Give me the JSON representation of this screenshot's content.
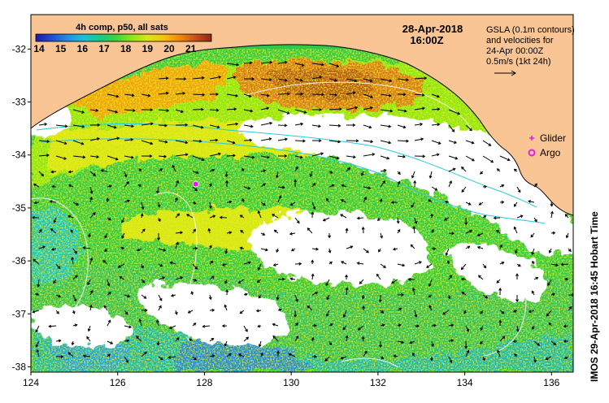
{
  "colors": {
    "land": "#f9c594",
    "no_data": "#ffffff",
    "coastline": "#000000",
    "contour": "#ffffff",
    "glider": "#e01ee0",
    "argo": "#e01ee0",
    "isobath": "#27c9e0"
  },
  "colorbar": {
    "title": "4h comp, p50, all sats",
    "ticks": [
      "14",
      "15",
      "16",
      "17",
      "18",
      "19",
      "20",
      "21"
    ],
    "colors": [
      "#1a1aa6",
      "#1f4fd6",
      "#1e90e6",
      "#19c1d6",
      "#16c98a",
      "#3ad33a",
      "#8ce619",
      "#d6e619",
      "#f5c20f",
      "#f08a0a",
      "#c8501a",
      "#8c2a0f"
    ]
  },
  "header": {
    "date": "28-Apr-2018",
    "time": "16:00Z"
  },
  "info": {
    "line1": "GSLA (0.1m contours)",
    "line2": "and velocities for",
    "line3": "24-Apr 00:00Z",
    "line4": "0.5m/s (1kt 24h)"
  },
  "legend": {
    "glider": "Glider",
    "argo": "Argo"
  },
  "axes": {
    "x_ticks": [
      "124",
      "126",
      "128",
      "130",
      "132",
      "134",
      "136"
    ],
    "y_ticks": [
      "-32",
      "-33",
      "-34",
      "-35",
      "-36",
      "-37",
      "-38"
    ]
  },
  "credit": "IMOS 29-Apr-2018 16:45 Hobart Time",
  "markers": {
    "glider": {
      "lon": 127.8,
      "lat": -34.55
    }
  }
}
